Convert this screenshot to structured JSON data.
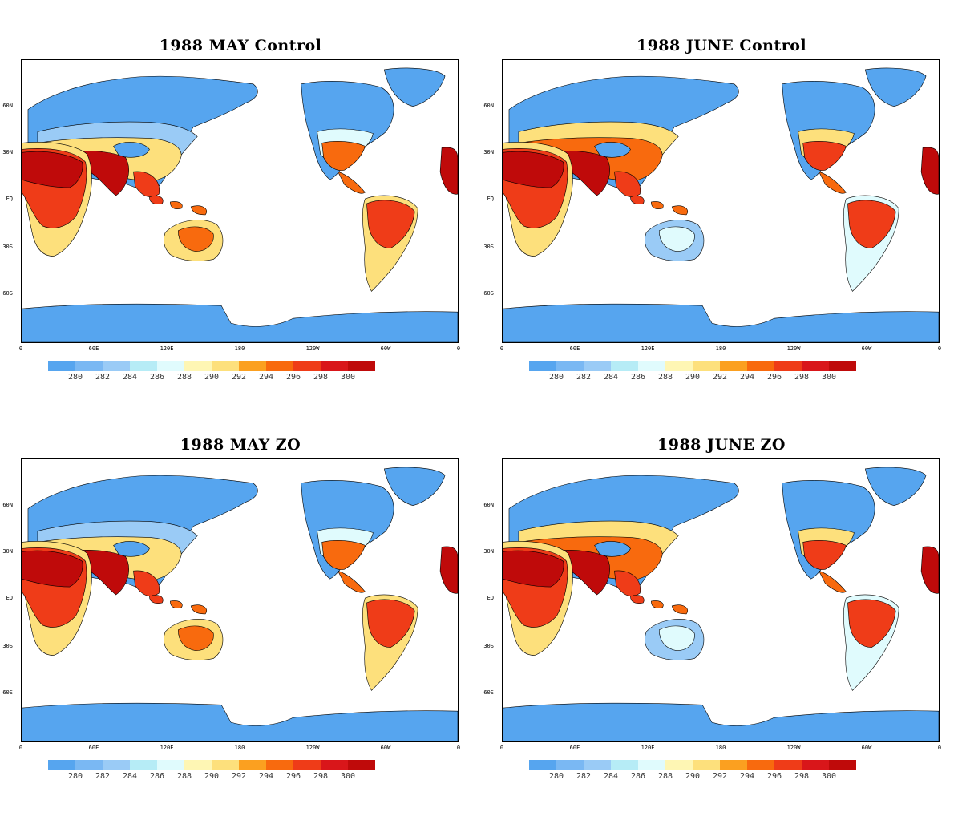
{
  "panels": [
    {
      "title": "1988 MAY Control"
    },
    {
      "title": "1988 JUNE Control"
    },
    {
      "title": "1988 MAY ZO"
    },
    {
      "title": "1988 JUNE ZO"
    }
  ],
  "map": {
    "lat_labels": [
      "60N",
      "30N",
      "EQ",
      "30S",
      "60S"
    ],
    "lon_labels": [
      "0",
      "60E",
      "120E",
      "180",
      "120W",
      "60W",
      "0"
    ]
  },
  "colorbar": {
    "labels": [
      "280",
      "282",
      "284",
      "286",
      "288",
      "290",
      "292",
      "294",
      "296",
      "298",
      "300"
    ],
    "colors": [
      "#56a5ef",
      "#7ab8f3",
      "#9acbf6",
      "#b6ecf6",
      "#e0fbfd",
      "#fef6b4",
      "#fde07c",
      "#fba020",
      "#f86a0e",
      "#ef3c18",
      "#d9161a",
      "#bf0a0a"
    ]
  },
  "colors": {
    "cold": "#56a5ef",
    "cool": "#9acbf6",
    "mild": "#e0fbfd",
    "warm": "#fde07c",
    "hot": "#f86a0e",
    "hotter": "#ef3c18",
    "hottest": "#bf0a0a"
  }
}
